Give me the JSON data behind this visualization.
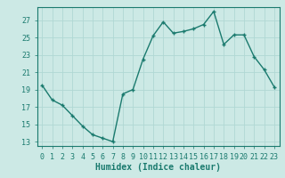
{
  "x": [
    0,
    1,
    2,
    3,
    4,
    5,
    6,
    7,
    8,
    9,
    10,
    11,
    12,
    13,
    14,
    15,
    16,
    17,
    18,
    19,
    20,
    21,
    22,
    23
  ],
  "y": [
    19.5,
    17.8,
    17.2,
    16.0,
    14.8,
    13.8,
    13.4,
    13.0,
    18.5,
    19.0,
    22.5,
    25.2,
    26.8,
    25.5,
    25.7,
    26.0,
    26.5,
    28.0,
    24.2,
    25.3,
    25.3,
    22.8,
    21.3,
    19.3
  ],
  "line_color": "#1a7a6e",
  "marker": "+",
  "marker_size": 3,
  "bg_color": "#cce9e5",
  "grid_color": "#b0d8d4",
  "xlabel": "Humidex (Indice chaleur)",
  "xlabel_fontsize": 7,
  "yticks": [
    13,
    15,
    17,
    19,
    21,
    23,
    25,
    27
  ],
  "xticks": [
    0,
    1,
    2,
    3,
    4,
    5,
    6,
    7,
    8,
    9,
    10,
    11,
    12,
    13,
    14,
    15,
    16,
    17,
    18,
    19,
    20,
    21,
    22,
    23
  ],
  "ylim": [
    12.5,
    28.5
  ],
  "xlim": [
    -0.5,
    23.5
  ],
  "tick_fontsize": 6,
  "line_width": 1.0
}
